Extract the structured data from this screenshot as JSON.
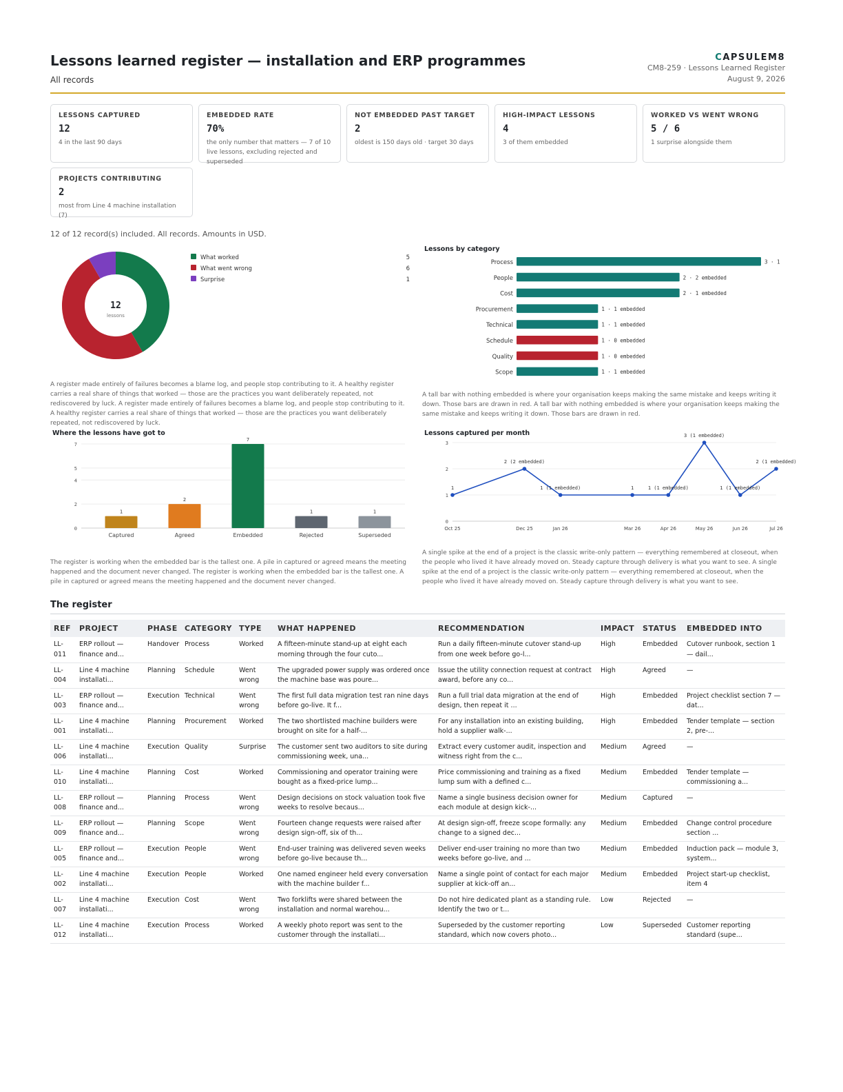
{
  "header": {
    "title": "Lessons learned register — installation and ERP programmes",
    "subtitle": "All records",
    "brand_rest": "APSULEM8",
    "brand_initial": "C",
    "doc_ref": "CM8-259 · Lessons Learned Register",
    "date": "August 9, 2026"
  },
  "kpis": [
    {
      "label": "Lessons captured",
      "value": "12",
      "note": "4 in the last 90 days"
    },
    {
      "label": "Embedded rate",
      "value": "70%",
      "note": "the only number that matters — 7 of 10 live lessons, excluding rejected and superseded"
    },
    {
      "label": "Not embedded past target",
      "value": "2",
      "note": "oldest is 150 days old · target 30 days"
    },
    {
      "label": "High-impact lessons",
      "value": "4",
      "note": "3 of them embedded"
    },
    {
      "label": "Worked vs went wrong",
      "value": "5 / 6",
      "note": "1 surprise alongside them"
    },
    {
      "label": "Projects contributing",
      "value": "2",
      "note": "most from Line 4 machine installation (7)"
    }
  ],
  "included_text": "12 of 12 record(s) included. All records. Amounts in USD.",
  "paragraphs": {
    "donut": "A register made entirely of failures becomes a blame log, and people stop contributing to it. A healthy register carries a real share of things that worked — those are the practices you want deliberately repeated, not rediscovered by luck. A register made entirely of failures becomes a blame log, and people stop contributing to it. A healthy register carries a real share of things that worked — those are the practices you want deliberately repeated, not rediscovered by luck.",
    "category": "A tall bar with nothing embedded is where your organisation keeps making the same mistake and keeps writing it down. Those bars are drawn in red. A tall bar with nothing embedded is where your organisation keeps making the same mistake and keeps writing it down. Those bars are drawn in red.",
    "status": "The register is working when the embedded bar is the tallest one. A pile in captured or agreed means the meeting happened and the document never changed. The register is working when the embedded bar is the tallest one. A pile in captured or agreed means the meeting happened and the document never changed.",
    "monthly": "A single spike at the end of a project is the classic write-only pattern — everything remembered at closeout, when the people who lived it have already moved on. Steady capture through delivery is what you want to see. A single spike at the end of a project is the classic write-only pattern — everything remembered at closeout, when the people who lived it have already moved on. Steady capture through delivery is what you want to see."
  },
  "chart_data": [
    {
      "type": "pie",
      "title": "",
      "center_value": "12",
      "center_label": "lessons",
      "slices": [
        {
          "label": "What worked",
          "value": 5,
          "color": "#137a4c"
        },
        {
          "label": "What went wrong",
          "value": 6,
          "color": "#b8232f"
        },
        {
          "label": "Surprise",
          "value": 1,
          "color": "#7b3fbf"
        }
      ]
    },
    {
      "type": "bar",
      "orientation": "horizontal",
      "title": "Lessons by category",
      "categories": [
        "Process",
        "People",
        "Cost",
        "Procurement",
        "Technical",
        "Schedule",
        "Quality",
        "Scope"
      ],
      "values": [
        3,
        2,
        2,
        1,
        1,
        1,
        1,
        1
      ],
      "labels": [
        "3 · 1",
        "2 · 2 embedded",
        "2 · 1 embedded",
        "1 · 1 embedded",
        "1 · 1 embedded",
        "1 · 0 embedded",
        "1 · 0 embedded",
        "1 · 1 embedded"
      ],
      "colors": [
        "#137a74",
        "#137a74",
        "#137a74",
        "#137a74",
        "#137a74",
        "#b8232f",
        "#b8232f",
        "#137a74"
      ],
      "xlim": [
        0,
        3
      ]
    },
    {
      "type": "bar",
      "title": "Where the lessons have got to",
      "categories": [
        "Captured",
        "Agreed",
        "Embedded",
        "Rejected",
        "Superseded"
      ],
      "values": [
        1,
        2,
        7,
        1,
        1
      ],
      "colors": [
        "#c0841c",
        "#e07b1f",
        "#137a4c",
        "#5e6670",
        "#8c949c"
      ],
      "yticks": [
        0,
        2,
        4,
        5,
        7
      ],
      "ylim": [
        0,
        7
      ]
    },
    {
      "type": "line",
      "title": "Lessons captured per month",
      "x": [
        "Oct 25",
        "Dec 25",
        "Jan 26",
        "Mar 26",
        "Apr 26",
        "May 26",
        "Jun 26",
        "Jul 26"
      ],
      "points": [
        {
          "label": "Oct 25",
          "y": 1,
          "data_label": "1"
        },
        {
          "label": "Dec 25",
          "y": 2,
          "data_label": "2 (2 embedded)"
        },
        {
          "label": "Jan 26",
          "y": 1,
          "data_label": "1 (1 embedded)"
        },
        {
          "label": "Mar 26",
          "y": 1,
          "data_label": "1"
        },
        {
          "label": "Apr 26",
          "y": 1,
          "data_label": "1 (1 embedded)"
        },
        {
          "label": "May 26",
          "y": 3,
          "data_label": "3 (1 embedded)"
        },
        {
          "label": "Jun 26",
          "y": 1,
          "data_label": "1 (1 embedded)"
        },
        {
          "label": "Jul 26",
          "y": 2,
          "data_label": "2 (1 embedded)"
        }
      ],
      "yticks": [
        0,
        1,
        2,
        3
      ],
      "ylim": [
        0,
        3
      ],
      "color": "#1f4fbf"
    }
  ],
  "register": {
    "title": "The register",
    "columns": [
      "Ref",
      "Project",
      "Phase",
      "Category",
      "Type",
      "What happened",
      "Recommendation",
      "Impact",
      "Status",
      "Embedded into"
    ],
    "rows": [
      [
        "LL-011",
        "ERP rollout — finance and...",
        "Handover",
        "Process",
        "Worked",
        "A fifteen-minute stand-up at eight each morning through the four cuto...",
        "Run a daily fifteen-minute cutover stand-up from one week before go-l...",
        "High",
        "Embedded",
        "Cutover runbook, section 1 — dail..."
      ],
      [
        "LL-004",
        "Line 4 machine installati...",
        "Planning",
        "Schedule",
        "Went wrong",
        "The upgraded power supply was ordered once the machine base was poure...",
        "Issue the utility connection request at contract award, before any co...",
        "High",
        "Agreed",
        "—"
      ],
      [
        "LL-003",
        "ERP rollout — finance and...",
        "Execution",
        "Technical",
        "Went wrong",
        "The first full data migration test ran nine days before go-live. It f...",
        "Run a full trial data migration at the end of design, then repeat it ...",
        "High",
        "Embedded",
        "Project checklist section 7 — dat..."
      ],
      [
        "LL-001",
        "Line 4 machine installati...",
        "Planning",
        "Procurement",
        "Worked",
        "The two shortlisted machine builders were brought on site for a half-...",
        "For any installation into an existing building, hold a supplier walk-...",
        "High",
        "Embedded",
        "Tender template — section 2, pre-..."
      ],
      [
        "LL-006",
        "Line 4 machine installati...",
        "Execution",
        "Quality",
        "Surprise",
        "The customer sent two auditors to site during commissioning week, una...",
        "Extract every customer audit, inspection and witness right from the c...",
        "Medium",
        "Agreed",
        "—"
      ],
      [
        "LL-010",
        "Line 4 machine installati...",
        "Planning",
        "Cost",
        "Worked",
        "Commissioning and operator training were bought as a fixed-price lump...",
        "Price commissioning and training as a fixed lump sum with a defined c...",
        "Medium",
        "Embedded",
        "Tender template — commissioning a..."
      ],
      [
        "LL-008",
        "ERP rollout — finance and...",
        "Planning",
        "Process",
        "Went wrong",
        "Design decisions on stock valuation took five weeks to resolve becaus...",
        "Name a single business decision owner for each module at design kick-...",
        "Medium",
        "Captured",
        "—"
      ],
      [
        "LL-009",
        "ERP rollout — finance and...",
        "Planning",
        "Scope",
        "Went wrong",
        "Fourteen change requests were raised after design sign-off, six of th...",
        "At design sign-off, freeze scope formally: any change to a signed dec...",
        "Medium",
        "Embedded",
        "Change control procedure section ..."
      ],
      [
        "LL-005",
        "ERP rollout — finance and...",
        "Execution",
        "People",
        "Went wrong",
        "End-user training was delivered seven weeks before go-live because th...",
        "Deliver end-user training no more than two weeks before go-live, and ...",
        "Medium",
        "Embedded",
        "Induction pack — module 3, system..."
      ],
      [
        "LL-002",
        "Line 4 machine installati...",
        "Execution",
        "People",
        "Worked",
        "One named engineer held every conversation with the machine builder f...",
        "Name a single point of contact for each major supplier at kick-off an...",
        "Medium",
        "Embedded",
        "Project start-up checklist, item 4"
      ],
      [
        "LL-007",
        "Line 4 machine installati...",
        "Execution",
        "Cost",
        "Went wrong",
        "Two forklifts were shared between the installation and normal warehou...",
        "Do not hire dedicated plant as a standing rule. Identify the two or t...",
        "Low",
        "Rejected",
        "—"
      ],
      [
        "LL-012",
        "Line 4 machine installati...",
        "Execution",
        "Process",
        "Worked",
        "A weekly photo report was sent to the customer through the installati...",
        "Superseded by the customer reporting standard, which now covers photo...",
        "Low",
        "Superseded",
        "Customer reporting standard (supe..."
      ]
    ]
  }
}
